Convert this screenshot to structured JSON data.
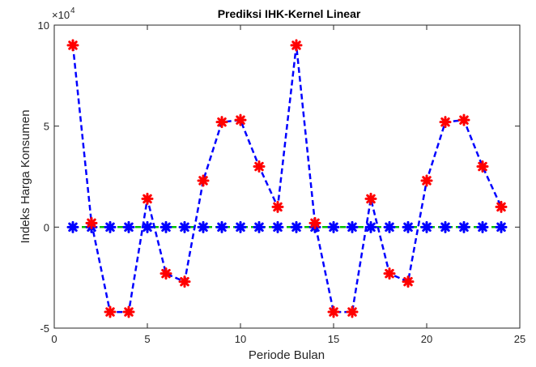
{
  "chart_data": {
    "type": "line",
    "title": "Prediksi IHK-Kernel Linear",
    "xlabel": "Periode Bulan",
    "ylabel": "Indeks Harga Konsumen",
    "y_exponent_label": "×10",
    "y_exponent_power": "4",
    "xlim": [
      0,
      25
    ],
    "ylim": [
      -5,
      10
    ],
    "x_ticks": [
      "0",
      "5",
      "10",
      "15",
      "20",
      "25"
    ],
    "y_ticks": [
      "-5",
      "0",
      "5",
      "10"
    ],
    "x_tick_values": [
      0,
      5,
      10,
      15,
      20,
      25
    ],
    "y_tick_values": [
      -5,
      0,
      5,
      10
    ],
    "y_scale_note": "values in units of 1e4",
    "x": [
      1,
      2,
      3,
      4,
      5,
      6,
      7,
      8,
      9,
      10,
      11,
      12,
      13,
      14,
      15,
      16,
      17,
      18,
      19,
      20,
      21,
      22,
      23,
      24
    ],
    "series": [
      {
        "values": [
          0,
          0,
          0,
          0,
          0,
          0,
          0,
          0,
          0,
          0,
          0,
          0,
          0,
          0,
          0,
          0,
          0,
          0,
          0,
          0,
          0,
          0,
          0,
          0
        ],
        "line_color": "#00c000",
        "line_style": "dashed",
        "marker": "asterisk",
        "marker_color": "#0000ff"
      },
      {
        "values": [
          9,
          0.2,
          -4.2,
          -4.2,
          1.4,
          -2.3,
          -2.7,
          2.3,
          5.2,
          5.3,
          3,
          1,
          9,
          0.2,
          -4.2,
          -4.2,
          1.4,
          -2.3,
          -2.7,
          2.3,
          5.2,
          5.3,
          3,
          1
        ],
        "line_color": "#0000ff",
        "line_style": "dashed",
        "marker": "asterisk",
        "marker_color": "#ff0000"
      }
    ],
    "grid": false
  }
}
